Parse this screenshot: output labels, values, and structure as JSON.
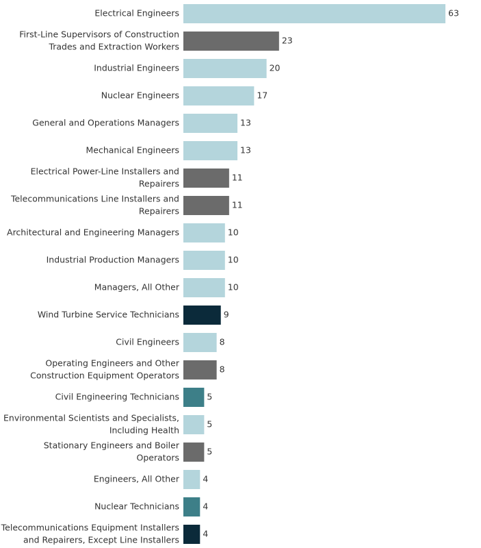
{
  "chart_data": {
    "type": "bar",
    "orientation": "horizontal",
    "title": "",
    "xlabel": "",
    "ylabel": "",
    "grid": false,
    "legend": "none",
    "xlim": [
      0,
      63
    ],
    "colors": {
      "light-blue": "#b4d5dc",
      "gray": "#6b6b6b",
      "dark-navy": "#0b2a3a",
      "teal": "#3d7f88"
    },
    "categories": [
      [
        "Electrical Engineers"
      ],
      [
        "First-Line Supervisors of Construction",
        "Trades and Extraction Workers"
      ],
      [
        "Industrial Engineers"
      ],
      [
        "Nuclear Engineers"
      ],
      [
        "General and Operations Managers"
      ],
      [
        "Mechanical Engineers"
      ],
      [
        "Electrical Power-Line Installers and",
        "Repairers"
      ],
      [
        "Telecommunications Line Installers and",
        "Repairers"
      ],
      [
        "Architectural and Engineering Managers"
      ],
      [
        "Industrial Production Managers"
      ],
      [
        "Managers, All Other"
      ],
      [
        "Wind Turbine Service Technicians"
      ],
      [
        "Civil Engineers"
      ],
      [
        "Operating Engineers and Other",
        "Construction Equipment Operators"
      ],
      [
        "Civil Engineering Technicians"
      ],
      [
        "Environmental Scientists and Specialists,",
        "Including Health"
      ],
      [
        "Stationary Engineers and Boiler",
        "Operators"
      ],
      [
        "Engineers, All Other"
      ],
      [
        "Nuclear Technicians"
      ],
      [
        "Telecommunications Equipment Installers",
        "and Repairers, Except Line Installers"
      ]
    ],
    "values": [
      63,
      23,
      20,
      17,
      13,
      13,
      11,
      11,
      10,
      10,
      10,
      9,
      8,
      8,
      5,
      5,
      5,
      4,
      4,
      4
    ],
    "bar_colors": [
      "light-blue",
      "gray",
      "light-blue",
      "light-blue",
      "light-blue",
      "light-blue",
      "gray",
      "gray",
      "light-blue",
      "light-blue",
      "light-blue",
      "dark-navy",
      "light-blue",
      "gray",
      "teal",
      "light-blue",
      "gray",
      "light-blue",
      "teal",
      "dark-navy"
    ]
  }
}
